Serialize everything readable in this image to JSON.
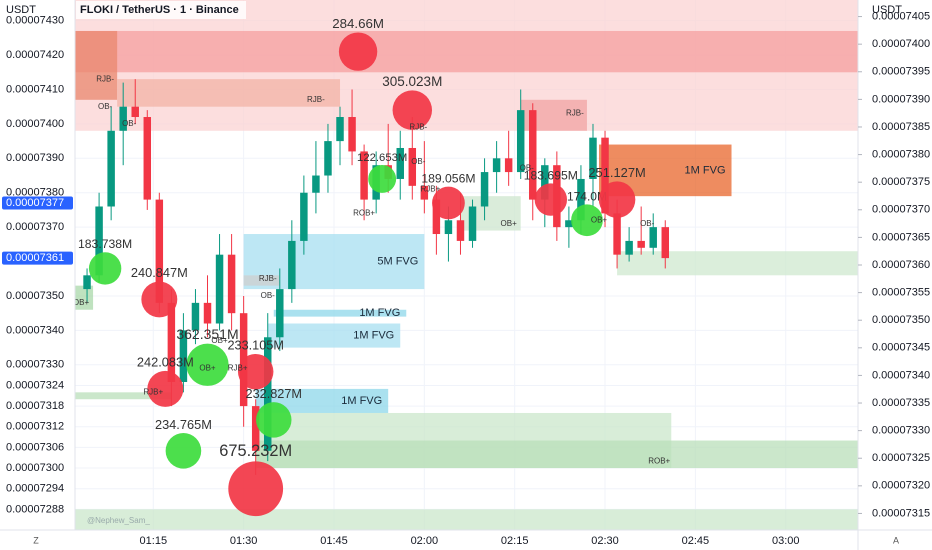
{
  "chart_data": {
    "type": "candlestick",
    "title": "FLOKI / TetherUS · 1 · Binance",
    "y_unit": "USDT",
    "y2_unit": "USDT",
    "left_corner": "Z",
    "right_corner": "A",
    "watermark": "@Nephew_Sam_",
    "grid": true,
    "up_color": "#089981",
    "down_color": "#f23645",
    "xlim": [
      "01:02",
      "03:12"
    ],
    "xticks": [
      "01:15",
      "01:30",
      "01:45",
      "02:00",
      "02:15",
      "02:30",
      "02:45",
      "03:00"
    ],
    "ylim": [
      7.282e-05,
      7.436e-05
    ],
    "yticks": [
      {
        "value": 7.43e-05,
        "label": "0.00007430"
      },
      {
        "value": 7.42e-05,
        "label": "0.00007420"
      },
      {
        "value": 7.41e-05,
        "label": "0.00007410"
      },
      {
        "value": 7.4e-05,
        "label": "0.00007400"
      },
      {
        "value": 7.39e-05,
        "label": "0.00007390"
      },
      {
        "value": 7.38e-05,
        "label": "0.00007380"
      },
      {
        "value": 7.37e-05,
        "label": "0.00007370"
      },
      {
        "value": 7.35e-05,
        "label": "0.00007350"
      },
      {
        "value": 7.34e-05,
        "label": "0.00007340"
      },
      {
        "value": 7.33e-05,
        "label": "0.00007330"
      },
      7.324e-05,
      7.318e-05,
      7.312e-05,
      7.306e-05,
      {
        "value": 7.3e-05,
        "label": "0.00007300"
      },
      7.294e-05,
      7.288e-05
    ],
    "y2lim": [
      7.312e-05,
      7.408e-05
    ],
    "y2ticks": [
      7.405e-05,
      {
        "value": 7.4e-05,
        "label": "0.00007400"
      },
      7.395e-05,
      {
        "value": 7.39e-05,
        "label": "0.00007390"
      },
      7.385e-05,
      {
        "value": 7.38e-05,
        "label": "0.00007380"
      },
      7.375e-05,
      {
        "value": 7.37e-05,
        "label": "0.00007370"
      },
      7.365e-05,
      {
        "value": 7.36e-05,
        "label": "0.00007360"
      },
      7.355e-05,
      {
        "value": 7.35e-05,
        "label": "0.00007350"
      },
      7.345e-05,
      {
        "value": 7.34e-05,
        "label": "0.00007340"
      },
      7.335e-05,
      {
        "value": 7.33e-05,
        "label": "0.00007330"
      },
      7.325e-05,
      {
        "value": 7.32e-05,
        "label": "0.00007320"
      },
      7.315e-05
    ],
    "price_tags": [
      {
        "value": 7.377e-05,
        "color": "#2962ff"
      },
      {
        "value": 7.361e-05,
        "color": "#2962ff"
      }
    ],
    "x": [
      "01:04",
      "01:06",
      "01:08",
      "01:10",
      "01:12",
      "01:14",
      "01:16",
      "01:18",
      "01:20",
      "01:22",
      "01:24",
      "01:26",
      "01:28",
      "01:30",
      "01:32",
      "01:34",
      "01:36",
      "01:38",
      "01:40",
      "01:42",
      "01:44",
      "01:46",
      "01:48",
      "01:50",
      "01:52",
      "01:54",
      "01:56",
      "01:58",
      "02:00",
      "02:02",
      "02:04",
      "02:06",
      "02:08",
      "02:10",
      "02:12",
      "02:14",
      "02:16",
      "02:18",
      "02:20",
      "02:22",
      "02:24",
      "02:26",
      "02:28",
      "02:30",
      "02:32",
      "02:34",
      "02:36",
      "02:38",
      "02:40"
    ],
    "open": [
      7.352e-05,
      7.356e-05,
      7.376e-05,
      7.398e-05,
      7.405e-05,
      7.402e-05,
      7.378e-05,
      7.348e-05,
      7.325e-05,
      7.34e-05,
      7.348e-05,
      7.342e-05,
      7.362e-05,
      7.345e-05,
      7.318e-05,
      7.305e-05,
      7.338e-05,
      7.352e-05,
      7.366e-05,
      7.38e-05,
      7.385e-05,
      7.395e-05,
      7.402e-05,
      7.392e-05,
      7.378e-05,
      7.388e-05,
      7.384e-05,
      7.393e-05,
      7.382e-05,
      7.378e-05,
      7.368e-05,
      7.372e-05,
      7.366e-05,
      7.376e-05,
      7.386e-05,
      7.39e-05,
      7.386e-05,
      7.404e-05,
      7.378e-05,
      7.388e-05,
      7.37e-05,
      7.372e-05,
      7.384e-05,
      7.396e-05,
      7.374e-05,
      7.362e-05,
      7.366e-05,
      7.364e-05,
      7.37e-05
    ],
    "high": [
      7.358e-05,
      7.38e-05,
      7.405e-05,
      7.412e-05,
      7.413e-05,
      7.404e-05,
      7.38e-05,
      7.352e-05,
      7.345e-05,
      7.352e-05,
      7.356e-05,
      7.368e-05,
      7.368e-05,
      7.35e-05,
      7.32e-05,
      7.345e-05,
      7.358e-05,
      7.372e-05,
      7.385e-05,
      7.395e-05,
      7.4e-05,
      7.405e-05,
      7.41e-05,
      7.394e-05,
      7.392e-05,
      7.4e-05,
      7.398e-05,
      7.402e-05,
      7.395e-05,
      7.382e-05,
      7.376e-05,
      7.38e-05,
      7.378e-05,
      7.39e-05,
      7.395e-05,
      7.398e-05,
      7.41e-05,
      7.406e-05,
      7.39e-05,
      7.392e-05,
      7.376e-05,
      7.388e-05,
      7.4e-05,
      7.398e-05,
      7.378e-05,
      7.37e-05,
      7.376e-05,
      7.374e-05,
      7.372e-05
    ],
    "low": [
      7.348e-05,
      7.354e-05,
      7.372e-05,
      7.388e-05,
      7.4e-05,
      7.375e-05,
      7.345e-05,
      7.318e-05,
      7.322e-05,
      7.336e-05,
      7.338e-05,
      7.34e-05,
      7.34e-05,
      7.312e-05,
      7.298e-05,
      7.302e-05,
      7.334e-05,
      7.348e-05,
      7.362e-05,
      7.374e-05,
      7.38e-05,
      7.388e-05,
      7.388e-05,
      7.372e-05,
      7.374e-05,
      7.38e-05,
      7.378e-05,
      7.378e-05,
      7.374e-05,
      7.362e-05,
      7.36e-05,
      7.362e-05,
      7.364e-05,
      7.372e-05,
      7.38e-05,
      7.382e-05,
      7.384e-05,
      7.372e-05,
      7.37e-05,
      7.366e-05,
      7.364e-05,
      7.368e-05,
      7.376e-05,
      7.37e-05,
      7.358e-05,
      7.36e-05,
      7.362e-05,
      7.362e-05,
      7.358e-05
    ],
    "close": [
      7.356e-05,
      7.376e-05,
      7.398e-05,
      7.405e-05,
      7.402e-05,
      7.378e-05,
      7.348e-05,
      7.325e-05,
      7.34e-05,
      7.348e-05,
      7.342e-05,
      7.362e-05,
      7.345e-05,
      7.318e-05,
      7.305e-05,
      7.338e-05,
      7.352e-05,
      7.366e-05,
      7.38e-05,
      7.385e-05,
      7.395e-05,
      7.402e-05,
      7.392e-05,
      7.378e-05,
      7.388e-05,
      7.384e-05,
      7.393e-05,
      7.382e-05,
      7.378e-05,
      7.368e-05,
      7.372e-05,
      7.366e-05,
      7.376e-05,
      7.386e-05,
      7.39e-05,
      7.386e-05,
      7.404e-05,
      7.378e-05,
      7.388e-05,
      7.37e-05,
      7.372e-05,
      7.384e-05,
      7.396e-05,
      7.374e-05,
      7.362e-05,
      7.366e-05,
      7.364e-05,
      7.37e-05,
      7.361e-05
    ],
    "zones": [
      {
        "start": "01:02",
        "end": "03:12",
        "top": 7.436e-05,
        "bottom": 7.398e-05,
        "color": "#fbd3d3"
      },
      {
        "start": "01:02",
        "end": "03:12",
        "top": 7.427e-05,
        "bottom": 7.415e-05,
        "color": "#f59f9f"
      },
      {
        "start": "01:02",
        "end": "01:09",
        "top": 7.427e-05,
        "bottom": 7.407e-05,
        "color": "#e9876d"
      },
      {
        "start": "01:09",
        "end": "01:46",
        "top": 7.413e-05,
        "bottom": 7.405e-05,
        "color": "#f3b3a6"
      },
      {
        "start": "02:16",
        "end": "02:27",
        "top": 7.407e-05,
        "bottom": 7.398e-05,
        "color": "#f2a3a3"
      },
      {
        "start": "02:29",
        "end": "02:51",
        "top": 7.394e-05,
        "bottom": 7.379e-05,
        "color": "#e8652b",
        "label": "1M FVG"
      },
      {
        "start": "02:32",
        "end": "03:12",
        "top": 7.363e-05,
        "bottom": 7.356e-05,
        "color": "#cfe8cf"
      },
      {
        "start": "02:06",
        "end": "02:16",
        "top": 7.379e-05,
        "bottom": 7.369e-05,
        "color": "#cde6cd"
      },
      {
        "start": "01:30",
        "end": "02:00",
        "top": 7.368e-05,
        "bottom": 7.352e-05,
        "color": "#a7dff0",
        "label": "5M FVG"
      },
      {
        "start": "01:35",
        "end": "01:57",
        "top": 7.346e-05,
        "bottom": 7.344e-05,
        "color": "#8ed7ea",
        "label": "1M FVG"
      },
      {
        "start": "01:34",
        "end": "01:56",
        "top": 7.342e-05,
        "bottom": 7.335e-05,
        "color": "#a7dff0",
        "label": "1M FVG"
      },
      {
        "start": "01:32",
        "end": "01:54",
        "top": 7.323e-05,
        "bottom": 7.316e-05,
        "color": "#8ed7ea",
        "label": "1M FVG"
      },
      {
        "start": "01:32",
        "end": "02:41",
        "top": 7.316e-05,
        "bottom": 7.3e-05,
        "color": "#cbe7cb"
      },
      {
        "start": "01:32",
        "end": "03:12",
        "top": 7.308e-05,
        "bottom": 7.3e-05,
        "color": "#b9dfb9"
      },
      {
        "start": "01:02",
        "end": "03:12",
        "top": 7.288e-05,
        "bottom": 7.282e-05,
        "color": "#cbe7cb"
      },
      {
        "start": "01:02",
        "end": "01:05",
        "top": 7.353e-05,
        "bottom": 7.346e-05,
        "color": "#a9d8a9"
      },
      {
        "start": "01:02",
        "end": "01:18",
        "top": 7.322e-05,
        "bottom": 7.32e-05,
        "color": "#b9dfb9"
      },
      {
        "start": "01:30",
        "end": "01:36",
        "top": 7.356e-05,
        "bottom": 7.353e-05,
        "color": "#cfcfcf"
      }
    ],
    "bubbles": [
      {
        "time": "01:49",
        "price": 7.421e-05,
        "volume": 284660000,
        "label": "284.66M",
        "color": "#f23645"
      },
      {
        "time": "01:58",
        "price": 7.404e-05,
        "volume": 305023000,
        "label": "305.023M",
        "color": "#f23645"
      },
      {
        "time": "02:04",
        "price": 7.377e-05,
        "volume": 189056000,
        "label": "189.056M",
        "color": "#f23645"
      },
      {
        "time": "02:21",
        "price": 7.378e-05,
        "volume": 183695000,
        "label": "183.695M",
        "color": "#f23645"
      },
      {
        "time": "02:27",
        "price": 7.372e-05,
        "volume": 174000000,
        "label": "174.0M",
        "color": "#3ddc3d"
      },
      {
        "time": "02:32",
        "price": 7.378e-05,
        "volume": 251127000,
        "label": "251.127M",
        "color": "#f23645"
      },
      {
        "time": "01:07",
        "price": 7.358e-05,
        "volume": 183738000,
        "label": "183.738M",
        "color": "#3ddc3d"
      },
      {
        "time": "01:16",
        "price": 7.349e-05,
        "volume": 240847000,
        "label": "240.847M",
        "color": "#f23645"
      },
      {
        "time": "01:24",
        "price": 7.33e-05,
        "volume": 362351000,
        "label": "362.351M",
        "color": "#3ddc3d"
      },
      {
        "time": "01:17",
        "price": 7.323e-05,
        "volume": 242083000,
        "label": "242.083M",
        "color": "#f23645"
      },
      {
        "time": "01:32",
        "price": 7.328e-05,
        "volume": 233105000,
        "label": "233.105M",
        "color": "#f23645"
      },
      {
        "time": "01:35",
        "price": 7.314e-05,
        "volume": 232827000,
        "label": "232.827M",
        "color": "#3ddc3d"
      },
      {
        "time": "01:20",
        "price": 7.305e-05,
        "volume": 234765000,
        "label": "234.765M",
        "color": "#3ddc3d"
      },
      {
        "time": "01:32",
        "price": 7.294e-05,
        "volume": 675232000,
        "label": "675.232M",
        "color": "#f23645"
      },
      {
        "time": "01:53",
        "price": 7.384e-05,
        "volume": 122653000,
        "label": "122.653M",
        "color": "#3ddc3d"
      }
    ],
    "annotations": [
      {
        "text": "RJB-",
        "time": "01:07",
        "price": 7.413e-05
      },
      {
        "text": "OB-",
        "time": "01:07",
        "price": 7.405e-05
      },
      {
        "text": "OB-",
        "time": "01:11",
        "price": 7.4e-05
      },
      {
        "text": "RJB-",
        "time": "01:42",
        "price": 7.407e-05
      },
      {
        "text": "RJB-",
        "time": "01:59",
        "price": 7.399e-05
      },
      {
        "text": "RJB-",
        "time": "02:25",
        "price": 7.403e-05
      },
      {
        "text": "OB-",
        "time": "02:17",
        "price": 7.387e-05
      },
      {
        "text": "OB-",
        "time": "01:59",
        "price": 7.389e-05
      },
      {
        "text": "RJB+",
        "time": "02:01",
        "price": 7.381e-05
      },
      {
        "text": "ROB+",
        "time": "01:50",
        "price": 7.374e-05
      },
      {
        "text": "OB+",
        "time": "02:14",
        "price": 7.371e-05
      },
      {
        "text": "OB+",
        "time": "02:29",
        "price": 7.372e-05
      },
      {
        "text": "OB-",
        "time": "02:37",
        "price": 7.371e-05
      },
      {
        "text": "OB+",
        "time": "01:03",
        "price": 7.348e-05
      },
      {
        "text": "RJB-",
        "time": "01:34",
        "price": 7.355e-05
      },
      {
        "text": "OB-",
        "time": "01:34",
        "price": 7.35e-05
      },
      {
        "text": "OB+",
        "time": "01:26",
        "price": 7.337e-05
      },
      {
        "text": "OB+",
        "time": "01:24",
        "price": 7.329e-05
      },
      {
        "text": "RJB+",
        "time": "01:29",
        "price": 7.329e-05
      },
      {
        "text": "RJB+",
        "time": "01:15",
        "price": 7.322e-05
      },
      {
        "text": "ROB+",
        "time": "02:39",
        "price": 7.302e-05
      }
    ]
  }
}
